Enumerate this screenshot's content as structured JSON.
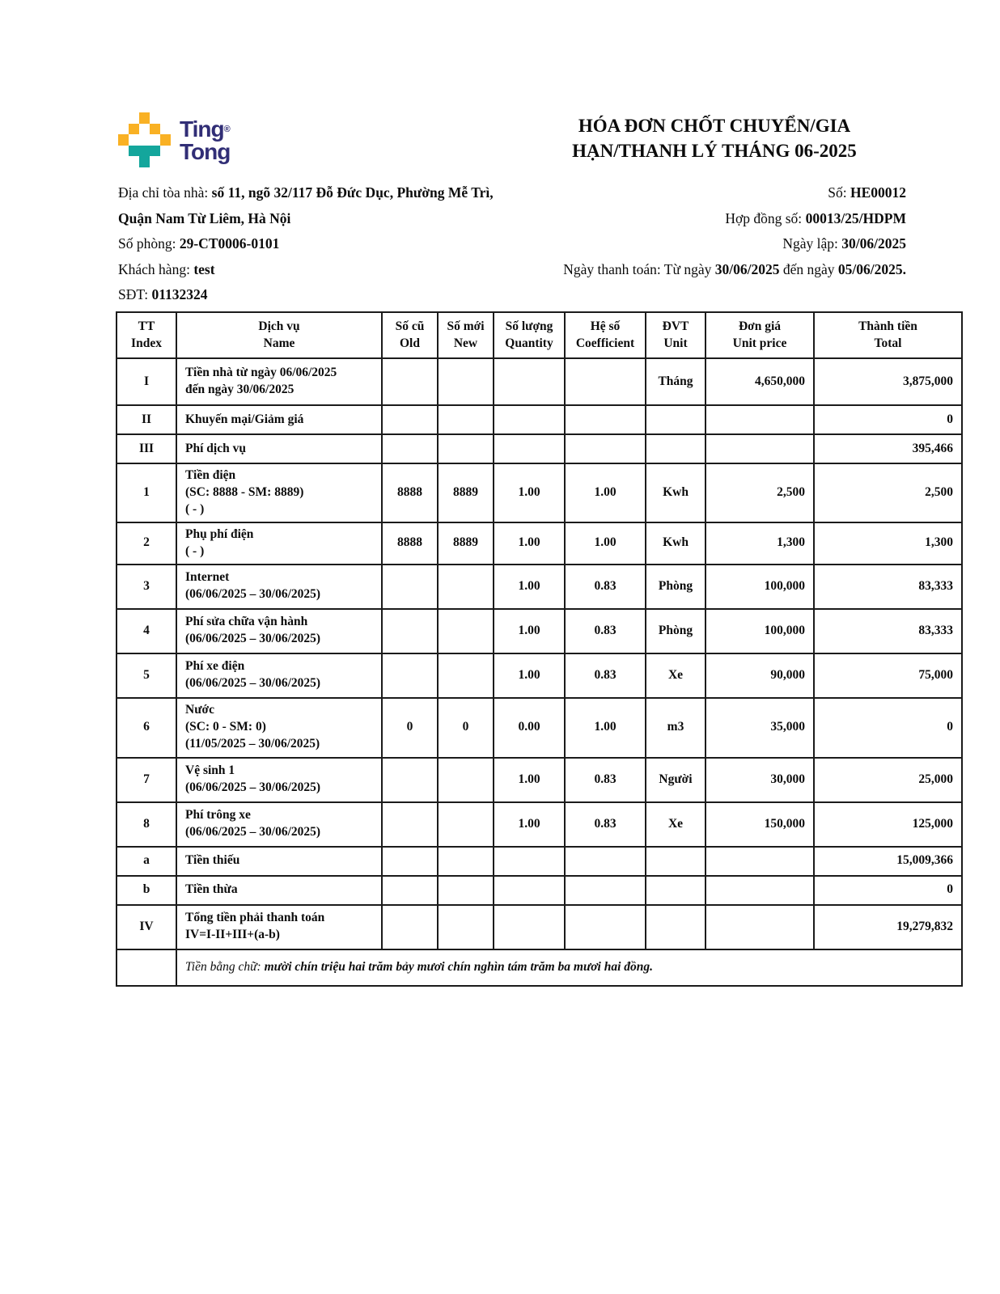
{
  "logo": {
    "line1": "Ting",
    "registered": "®",
    "line2": "Tong",
    "colors": {
      "yellow": "#F9B124",
      "teal": "#14A69C",
      "navy": "#312E76"
    }
  },
  "title": {
    "line1": "HÓA ĐƠN CHỐT CHUYỂN/GIA",
    "line2": "HẠN/THANH LÝ THÁNG 06-2025"
  },
  "meta_left": {
    "address_label": "Địa chỉ tòa nhà: ",
    "address_value1": "số 11, ngõ 32/117 Đỗ Đức Dục, Phường Mễ Trì,",
    "address_value2": "Quận Nam Từ Liêm, Hà Nội",
    "room_label": "Số phòng: ",
    "room_value": "29-CT0006-0101",
    "customer_label": "Khách hàng: ",
    "customer_value": "test",
    "phone_label": "SĐT: ",
    "phone_value": "01132324"
  },
  "meta_right": {
    "invoice_no_label": "Số: ",
    "invoice_no_value": "HE00012",
    "contract_label": "Hợp đồng số: ",
    "contract_value": "00013/25/HDPM",
    "issue_date_label": "Ngày lập: ",
    "issue_date_value": "30/06/2025",
    "payment_label": "Ngày thanh toán: Từ ngày ",
    "payment_from": "30/06/2025",
    "payment_mid": " đến ngày ",
    "payment_to": "05/06/2025."
  },
  "table": {
    "headers": [
      {
        "vi": "TT",
        "en": "Index"
      },
      {
        "vi": "Dịch vụ",
        "en": "Name"
      },
      {
        "vi": "Số cũ",
        "en": "Old"
      },
      {
        "vi": "Số mới",
        "en": "New"
      },
      {
        "vi": "Số lượng",
        "en": "Quantity"
      },
      {
        "vi": "Hệ số",
        "en": "Coefficient"
      },
      {
        "vi": "ĐVT",
        "en": "Unit"
      },
      {
        "vi": "Đơn giá",
        "en": "Unit price"
      },
      {
        "vi": "Thành tiền",
        "en": "Total"
      }
    ],
    "rows": [
      {
        "index": "I",
        "name": [
          "Tiền nhà từ ngày 06/06/2025",
          "đến ngày 30/06/2025"
        ],
        "old": "",
        "new": "",
        "qty": "",
        "coef": "",
        "unit": "Tháng",
        "price": "4,650,000",
        "total": "3,875,000"
      },
      {
        "index": "II",
        "name": [
          "Khuyến mại/Giảm giá"
        ],
        "old": "",
        "new": "",
        "qty": "",
        "coef": "",
        "unit": "",
        "price": "",
        "total": "0"
      },
      {
        "index": "III",
        "name": [
          "Phí dịch vụ"
        ],
        "old": "",
        "new": "",
        "qty": "",
        "coef": "",
        "unit": "",
        "price": "",
        "total": "395,466"
      },
      {
        "index": "1",
        "name": [
          "Tiền điện",
          "(SC: 8888 - SM: 8889)",
          "( - )"
        ],
        "old": "8888",
        "new": "8889",
        "qty": "1.00",
        "coef": "1.00",
        "unit": "Kwh",
        "price": "2,500",
        "total": "2,500"
      },
      {
        "index": "2",
        "name": [
          "Phụ phí điện",
          "( - )"
        ],
        "old": "8888",
        "new": "8889",
        "qty": "1.00",
        "coef": "1.00",
        "unit": "Kwh",
        "price": "1,300",
        "total": "1,300"
      },
      {
        "index": "3",
        "name": [
          "Internet",
          "(06/06/2025 – 30/06/2025)"
        ],
        "old": "",
        "new": "",
        "qty": "1.00",
        "coef": "0.83",
        "unit": "Phòng",
        "price": "100,000",
        "total": "83,333"
      },
      {
        "index": "4",
        "name": [
          "Phí sửa chữa vận hành",
          "(06/06/2025 – 30/06/2025)"
        ],
        "old": "",
        "new": "",
        "qty": "1.00",
        "coef": "0.83",
        "unit": "Phòng",
        "price": "100,000",
        "total": "83,333"
      },
      {
        "index": "5",
        "name": [
          "Phí xe điện",
          "(06/06/2025 – 30/06/2025)"
        ],
        "old": "",
        "new": "",
        "qty": "1.00",
        "coef": "0.83",
        "unit": "Xe",
        "price": "90,000",
        "total": "75,000"
      },
      {
        "index": "6",
        "name": [
          "Nước",
          "(SC: 0 - SM: 0)",
          "(11/05/2025 – 30/06/2025)"
        ],
        "old": "0",
        "new": "0",
        "qty": "0.00",
        "coef": "1.00",
        "unit": "m3",
        "price": "35,000",
        "total": "0"
      },
      {
        "index": "7",
        "name": [
          "Vệ sinh 1",
          "(06/06/2025 – 30/06/2025)"
        ],
        "old": "",
        "new": "",
        "qty": "1.00",
        "coef": "0.83",
        "unit": "Người",
        "price": "30,000",
        "total": "25,000"
      },
      {
        "index": "8",
        "name": [
          "Phí trông xe",
          "(06/06/2025 – 30/06/2025)"
        ],
        "old": "",
        "new": "",
        "qty": "1.00",
        "coef": "0.83",
        "unit": "Xe",
        "price": "150,000",
        "total": "125,000"
      },
      {
        "index": "a",
        "name": [
          "Tiền thiếu"
        ],
        "old": "",
        "new": "",
        "qty": "",
        "coef": "",
        "unit": "",
        "price": "",
        "total": "15,009,366"
      },
      {
        "index": "b",
        "name": [
          "Tiền thừa"
        ],
        "old": "",
        "new": "",
        "qty": "",
        "coef": "",
        "unit": "",
        "price": "",
        "total": "0"
      },
      {
        "index": "IV",
        "name": [
          "Tổng tiền phải thanh toán",
          "IV=I-II+III+(a-b)"
        ],
        "old": "",
        "new": "",
        "qty": "",
        "coef": "",
        "unit": "",
        "price": "",
        "total": "19,279,832"
      }
    ],
    "amount_in_words_label": "Tiền bằng chữ: ",
    "amount_in_words_value": "mười chín triệu hai trăm bảy mươi chín nghìn tám trăm ba mươi hai đồng."
  }
}
